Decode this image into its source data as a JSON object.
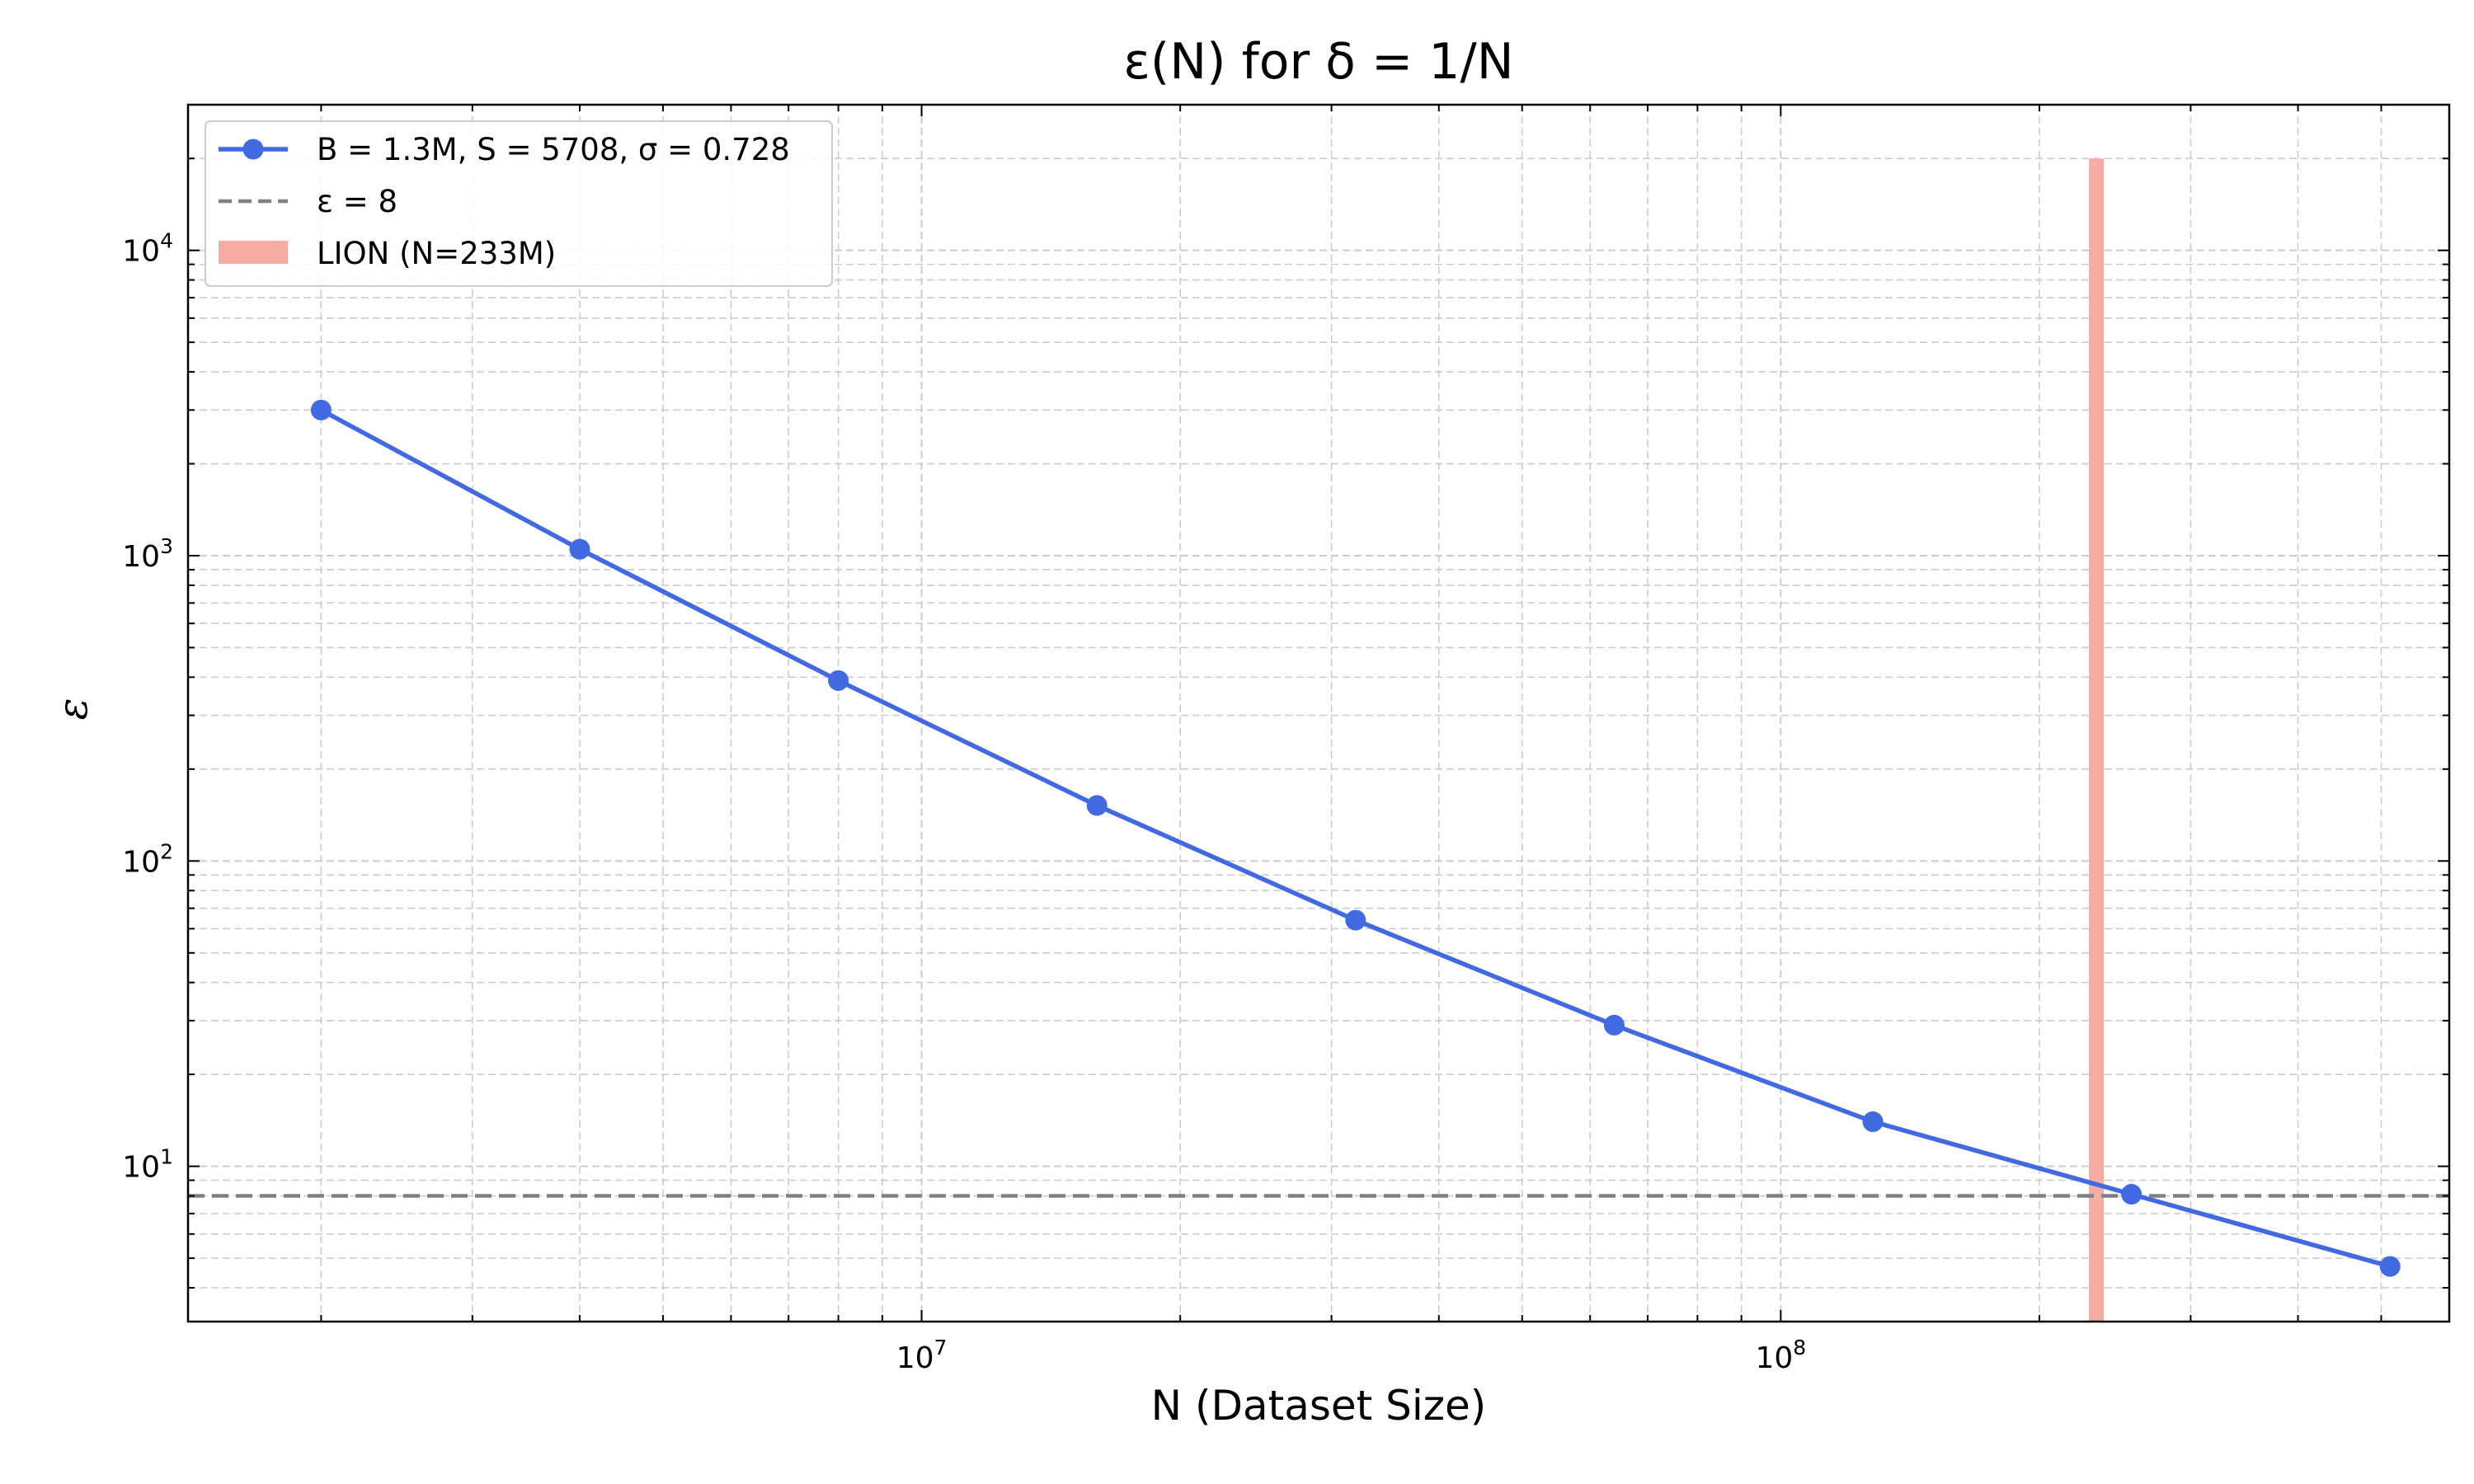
{
  "chart_data": {
    "type": "line",
    "title": "ε(N) for δ = 1/N",
    "xlabel": "N (Dataset Size)",
    "ylabel": "ε",
    "x_scale": "log",
    "y_scale": "log",
    "xlim": [
      1400000,
      600000000
    ],
    "ylim": [
      3.1,
      30000
    ],
    "grid": "major and minor, dashed",
    "legend_position": "top-left",
    "x_ticks": [
      {
        "value": 10000000,
        "base": "10",
        "exp": "7"
      },
      {
        "value": 100000000,
        "base": "10",
        "exp": "8"
      }
    ],
    "y_ticks": [
      {
        "value": 10,
        "base": "10",
        "exp": "1"
      },
      {
        "value": 100,
        "base": "10",
        "exp": "2"
      },
      {
        "value": 1000,
        "base": "10",
        "exp": "3"
      },
      {
        "value": 10000,
        "base": "10",
        "exp": "4"
      }
    ],
    "series": [
      {
        "name": "B = 1.3M, S = 5708, σ = 0.728",
        "color": "#4169e1",
        "marker": "circle",
        "x": [
          2000000,
          4000000,
          8000000,
          16000000,
          32000000,
          64000000,
          128000000,
          256000000,
          512000000
        ],
        "y": [
          3000,
          1050,
          390,
          152,
          64,
          29,
          14,
          8.1,
          4.7
        ]
      }
    ],
    "reference_line": {
      "name": "ε = 8",
      "y": 8,
      "color": "#808080",
      "style": "dashed"
    },
    "reference_band": {
      "name": "LION (N=233M)",
      "x": 233000000,
      "y_top": 20000,
      "color": "#f5aca3"
    }
  }
}
